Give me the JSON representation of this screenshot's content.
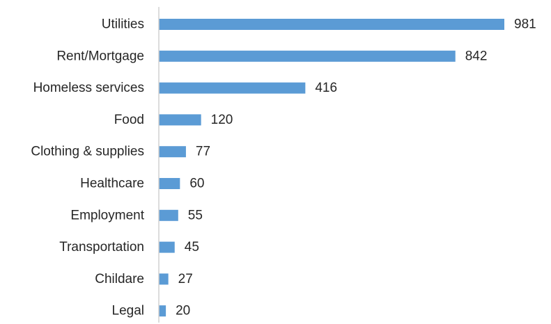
{
  "chart_data": {
    "type": "bar",
    "orientation": "horizontal",
    "categories": [
      "Utilities",
      "Rent/Mortgage",
      "Homeless services",
      "Food",
      "Clothing & supplies",
      "Healthcare",
      "Employment",
      "Transportation",
      "Childare",
      "Legal"
    ],
    "values": [
      981,
      842,
      416,
      120,
      77,
      60,
      55,
      45,
      27,
      20
    ],
    "value_labels": [
      "981",
      "842",
      "416",
      "120",
      "77",
      "60",
      "55",
      "45",
      "27",
      "20"
    ],
    "title": "",
    "xlabel": "",
    "ylabel": "",
    "xlim": [
      0,
      981
    ],
    "grid": false,
    "legend": "none",
    "bar_color": "#5b9bd5",
    "label_color": "#262626",
    "axis_color": "#d0d0d0"
  }
}
